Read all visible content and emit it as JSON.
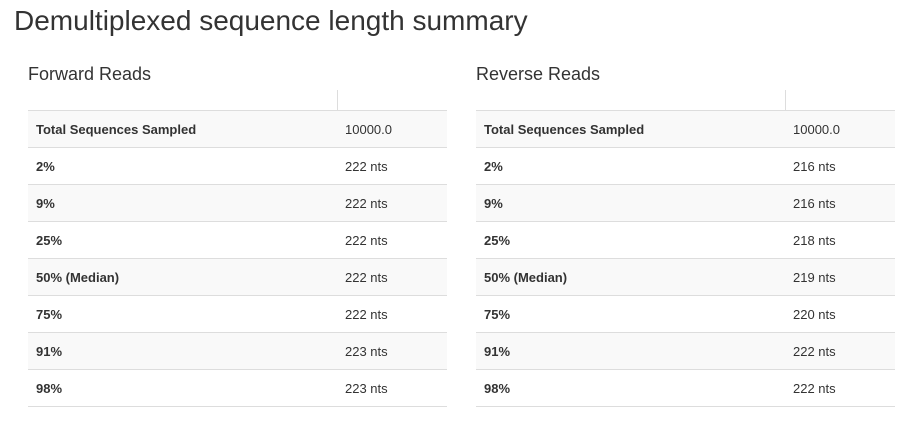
{
  "title": "Demultiplexed sequence length summary",
  "forward": {
    "heading": "Forward Reads",
    "rows": [
      {
        "label": "Total Sequences Sampled",
        "value": "10000.0"
      },
      {
        "label": "2%",
        "value": "222 nts"
      },
      {
        "label": "9%",
        "value": "222 nts"
      },
      {
        "label": "25%",
        "value": "222 nts"
      },
      {
        "label": "50% (Median)",
        "value": "222 nts"
      },
      {
        "label": "75%",
        "value": "222 nts"
      },
      {
        "label": "91%",
        "value": "223 nts"
      },
      {
        "label": "98%",
        "value": "223 nts"
      }
    ]
  },
  "reverse": {
    "heading": "Reverse Reads",
    "rows": [
      {
        "label": "Total Sequences Sampled",
        "value": "10000.0"
      },
      {
        "label": "2%",
        "value": "216 nts"
      },
      {
        "label": "9%",
        "value": "216 nts"
      },
      {
        "label": "25%",
        "value": "218 nts"
      },
      {
        "label": "50% (Median)",
        "value": "219 nts"
      },
      {
        "label": "75%",
        "value": "220 nts"
      },
      {
        "label": "91%",
        "value": "222 nts"
      },
      {
        "label": "98%",
        "value": "222 nts"
      }
    ]
  }
}
